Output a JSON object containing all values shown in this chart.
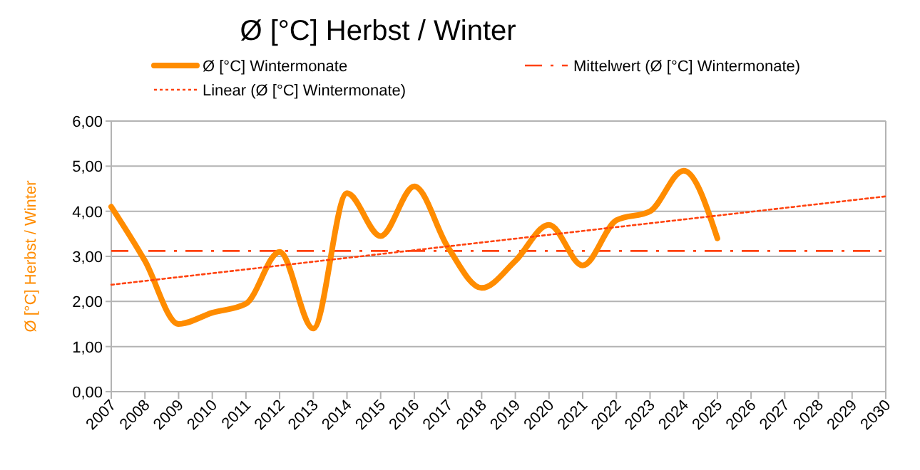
{
  "chart_data": {
    "type": "line",
    "title": "Ø [°C] Herbst / Winter",
    "ylabel": "Ø [°C] Herbst / Winter",
    "xlim": [
      2007,
      2030
    ],
    "xticks": [
      2007,
      2008,
      2009,
      2010,
      2011,
      2012,
      2013,
      2014,
      2015,
      2016,
      2017,
      2018,
      2019,
      2020,
      2021,
      2022,
      2023,
      2024,
      2025,
      2026,
      2027,
      2028,
      2029,
      2030
    ],
    "ylim": [
      0,
      6
    ],
    "yticks": [
      {
        "value": 0,
        "label": "0,00"
      },
      {
        "value": 1,
        "label": "1,00"
      },
      {
        "value": 2,
        "label": "2,00"
      },
      {
        "value": 3,
        "label": "3,00"
      },
      {
        "value": 4,
        "label": "4,00"
      },
      {
        "value": 5,
        "label": "5,00"
      },
      {
        "value": 6,
        "label": "6,00"
      }
    ],
    "grid": "y",
    "legend": "top",
    "marker": "none",
    "series": [
      {
        "name": "Ø [°C] Wintermonate",
        "color": "#ff8c00",
        "line_style": "solid",
        "x": [
          2007,
          2008,
          2009,
          2010,
          2011,
          2012,
          2013,
          2014,
          2015,
          2016,
          2017,
          2018,
          2019,
          2020,
          2021,
          2022,
          2023,
          2024,
          2025
        ],
        "values": [
          4.1,
          2.9,
          1.5,
          1.75,
          1.95,
          3.1,
          1.4,
          4.4,
          3.45,
          4.55,
          3.2,
          2.3,
          2.9,
          3.7,
          2.8,
          3.8,
          4.0,
          4.9,
          3.4
        ]
      },
      {
        "name": "Linear (Ø [°C] Wintermonate)",
        "color": "#ff420e",
        "line_style": "dotted",
        "x": [
          2007,
          2030
        ],
        "values": [
          2.37,
          4.33
        ]
      }
    ],
    "ref_lines": [
      {
        "axis": "y",
        "value": 3.12,
        "label": "Mittelwert (Ø [°C] Wintermonate)",
        "color": "#ff420e",
        "line_style": "dashed"
      }
    ]
  }
}
